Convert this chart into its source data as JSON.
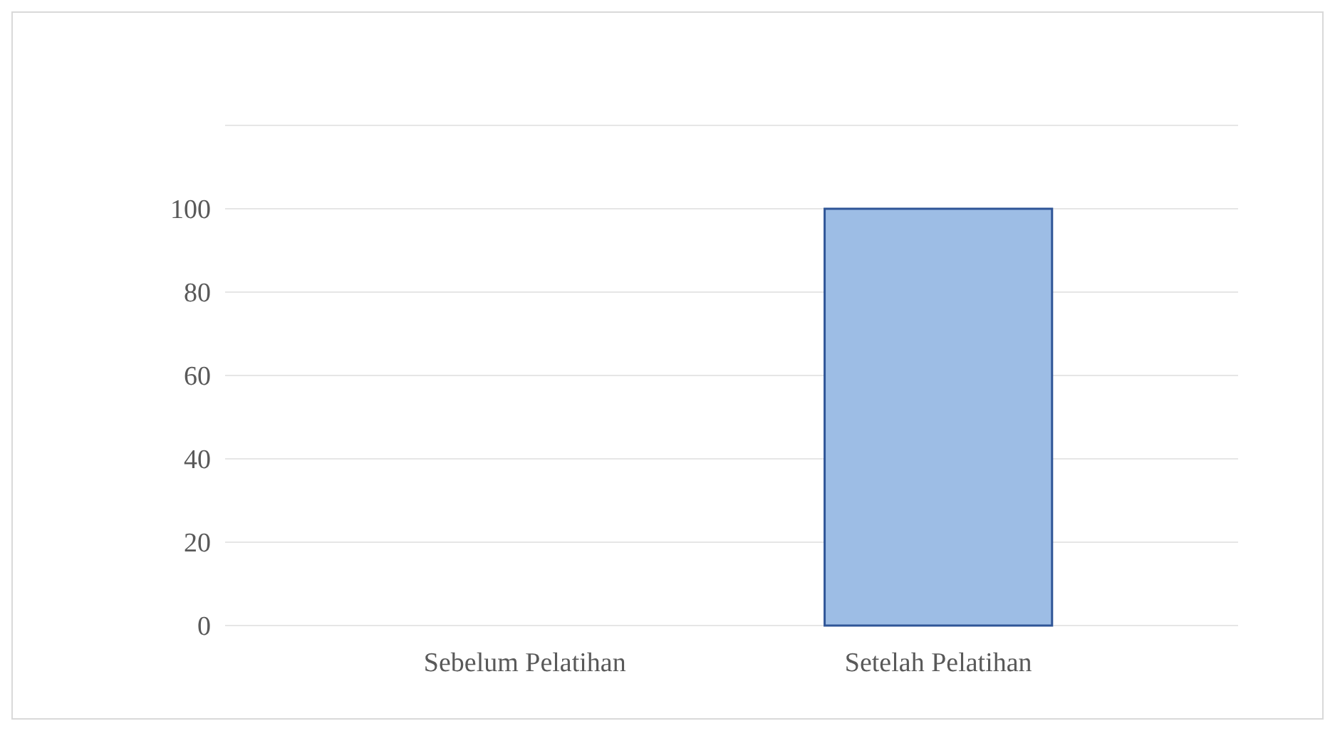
{
  "chart_data": {
    "type": "bar",
    "categories": [
      "Sebelum Pelatihan",
      "Setelah Pelatihan"
    ],
    "values": [
      0,
      100
    ],
    "color": "#9dbde5",
    "ylim": [
      0,
      120
    ],
    "yticks": [
      0,
      20,
      40,
      60,
      80,
      100,
      {
        "value": 120,
        "label": null
      }
    ],
    "grid": "y"
  }
}
